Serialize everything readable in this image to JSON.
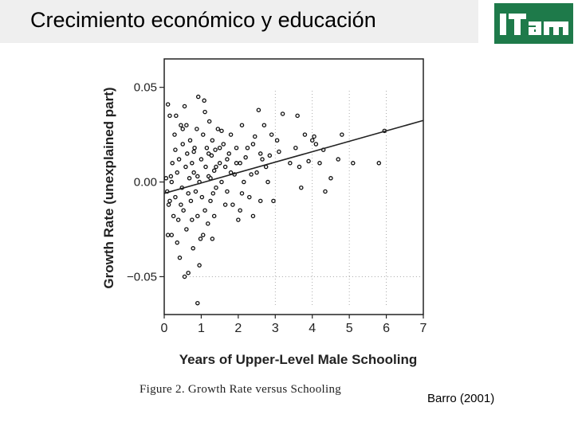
{
  "slide": {
    "title": "Crecimiento económico y educación",
    "logo_text": "ITAM",
    "citation": "Barro (2001)",
    "figure_caption": "Figure 2. Growth Rate versus Schooling",
    "colors": {
      "logo_bg": "#1e7a4a",
      "title_bar": "#efefef"
    }
  },
  "chart_data": {
    "type": "scatter",
    "xlabel": "Years of Upper-Level Male Schooling",
    "ylabel": "Growth Rate (unexplained part)",
    "xlim": [
      0,
      7
    ],
    "ylim": [
      -0.07,
      0.065
    ],
    "xticks": [
      0,
      1,
      2,
      3,
      4,
      5,
      6,
      7
    ],
    "yticks": [
      0.05,
      0.0,
      -0.05
    ],
    "ytick_labels": [
      "0.05",
      "0.00",
      "−0.05"
    ],
    "grid": "dotted lines at x = 3, 4, 5, 6 and y = -0.05",
    "series": [
      {
        "points": [
          [
            0.05,
            0.002
          ],
          [
            0.08,
            -0.005
          ],
          [
            0.1,
            0.041
          ],
          [
            0.12,
            -0.012
          ],
          [
            0.15,
            0.035
          ],
          [
            0.18,
            0.003
          ],
          [
            0.2,
            -0.028
          ],
          [
            0.22,
            0.01
          ],
          [
            0.25,
            -0.018
          ],
          [
            0.28,
            0.025
          ],
          [
            0.3,
            -0.008
          ],
          [
            0.32,
            0.035
          ],
          [
            0.35,
            0.005
          ],
          [
            0.38,
            -0.02
          ],
          [
            0.4,
            0.012
          ],
          [
            0.42,
            -0.04
          ],
          [
            0.45,
            0.03
          ],
          [
            0.48,
            -0.003
          ],
          [
            0.5,
            0.02
          ],
          [
            0.52,
            -0.015
          ],
          [
            0.55,
            0.04
          ],
          [
            0.58,
            0.008
          ],
          [
            0.6,
            -0.025
          ],
          [
            0.62,
            0.015
          ],
          [
            0.65,
            -0.048
          ],
          [
            0.68,
            0.002
          ],
          [
            0.7,
            0.022
          ],
          [
            0.72,
            -0.01
          ],
          [
            0.75,
            0.01
          ],
          [
            0.78,
            -0.035
          ],
          [
            0.8,
            0.005
          ],
          [
            0.82,
            0.018
          ],
          [
            0.85,
            -0.005
          ],
          [
            0.88,
            0.028
          ],
          [
            0.9,
            -0.018
          ],
          [
            0.92,
            0.045
          ],
          [
            0.95,
            0.0
          ],
          [
            0.98,
            -0.03
          ],
          [
            1.0,
            0.012
          ],
          [
            1.02,
            -0.008
          ],
          [
            1.05,
            0.025
          ],
          [
            1.08,
            0.043
          ],
          [
            1.1,
            -0.015
          ],
          [
            1.12,
            0.008
          ],
          [
            1.15,
            0.018
          ],
          [
            1.18,
            -0.022
          ],
          [
            1.2,
            0.003
          ],
          [
            1.22,
            0.032
          ],
          [
            1.25,
            -0.01
          ],
          [
            1.28,
            0.014
          ],
          [
            1.3,
            0.022
          ],
          [
            1.32,
            -0.006
          ],
          [
            1.35,
            0.006
          ],
          [
            1.38,
            0.017
          ],
          [
            1.4,
            -0.003
          ],
          [
            1.45,
            0.028
          ],
          [
            1.5,
            0.01
          ],
          [
            1.55,
            0.0
          ],
          [
            1.6,
            0.02
          ],
          [
            1.65,
            0.008
          ],
          [
            1.7,
            -0.005
          ],
          [
            1.75,
            0.015
          ],
          [
            1.8,
            0.025
          ],
          [
            1.85,
            -0.012
          ],
          [
            1.9,
            0.004
          ],
          [
            1.95,
            0.018
          ],
          [
            2.0,
            -0.02
          ],
          [
            2.05,
            0.01
          ],
          [
            2.1,
            0.03
          ],
          [
            2.15,
            0.0
          ],
          [
            2.2,
            0.013
          ],
          [
            2.3,
            -0.008
          ],
          [
            2.4,
            0.02
          ],
          [
            2.5,
            0.005
          ],
          [
            2.55,
            0.038
          ],
          [
            2.6,
            -0.01
          ],
          [
            2.65,
            0.012
          ],
          [
            2.7,
            0.03
          ],
          [
            2.8,
            0.0
          ],
          [
            2.9,
            0.025
          ],
          [
            2.95,
            -0.01
          ],
          [
            3.05,
            0.022
          ],
          [
            3.2,
            0.036
          ],
          [
            3.4,
            0.01
          ],
          [
            3.55,
            0.018
          ],
          [
            3.6,
            0.035
          ],
          [
            3.65,
            0.008
          ],
          [
            3.7,
            -0.003
          ],
          [
            3.8,
            0.025
          ],
          [
            3.9,
            0.011
          ],
          [
            4.0,
            0.022
          ],
          [
            4.05,
            0.024
          ],
          [
            4.1,
            0.02
          ],
          [
            4.2,
            0.01
          ],
          [
            4.3,
            0.017
          ],
          [
            4.35,
            -0.005
          ],
          [
            4.5,
            0.002
          ],
          [
            4.7,
            0.012
          ],
          [
            4.8,
            0.025
          ],
          [
            5.1,
            0.01
          ],
          [
            5.8,
            0.01
          ],
          [
            5.95,
            0.027
          ],
          [
            0.15,
            -0.01
          ],
          [
            0.3,
            0.017
          ],
          [
            0.45,
            -0.012
          ],
          [
            0.6,
            0.03
          ],
          [
            0.75,
            -0.02
          ],
          [
            0.9,
            0.003
          ],
          [
            1.05,
            -0.028
          ],
          [
            1.2,
            0.015
          ],
          [
            1.35,
            -0.018
          ],
          [
            1.5,
            0.018
          ],
          [
            1.65,
            -0.012
          ],
          [
            1.8,
            0.005
          ],
          [
            1.95,
            0.01
          ],
          [
            2.1,
            -0.006
          ],
          [
            2.25,
            0.018
          ],
          [
            2.4,
            -0.018
          ],
          [
            2.6,
            0.015
          ],
          [
            2.75,
            0.008
          ],
          [
            0.9,
            -0.064
          ],
          [
            0.1,
            -0.028
          ],
          [
            0.2,
            0.0
          ],
          [
            0.35,
            -0.032
          ],
          [
            0.5,
            0.028
          ],
          [
            0.65,
            -0.006
          ],
          [
            0.8,
            0.016
          ],
          [
            0.95,
            -0.044
          ],
          [
            1.1,
            0.037
          ],
          [
            1.25,
            0.002
          ],
          [
            1.4,
            0.008
          ],
          [
            1.55,
            0.027
          ],
          [
            1.7,
            0.012
          ],
          [
            2.05,
            -0.015
          ],
          [
            2.35,
            0.004
          ],
          [
            2.45,
            0.024
          ],
          [
            2.85,
            0.014
          ],
          [
            3.1,
            0.016
          ],
          [
            1.3,
            -0.03
          ],
          [
            0.55,
            -0.05
          ]
        ]
      }
    ],
    "fit_line": {
      "x": [
        0,
        7
      ],
      "y": [
        -0.006,
        0.0325
      ]
    }
  }
}
